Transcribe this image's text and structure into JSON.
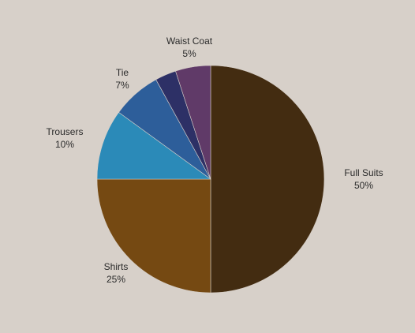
{
  "chart_data": {
    "type": "pie",
    "title": "",
    "slices": [
      {
        "label": "Full Suits",
        "value": 50,
        "value_label": "50%",
        "color": "#432c11"
      },
      {
        "label": "Shirts",
        "value": 25,
        "value_label": "25%",
        "color": "#754912"
      },
      {
        "label": "Trousers",
        "value": 10,
        "value_label": "10%",
        "color": "#2b8ab8"
      },
      {
        "label": "Tie",
        "value": 7,
        "value_label": "7%",
        "color": "#2d5e9a"
      },
      {
        "label": "",
        "value": 3,
        "value_label": "",
        "color": "#2d3066"
      },
      {
        "label": "Waist Coat",
        "value": 5,
        "value_label": "5%",
        "color": "#603a68"
      }
    ],
    "start_angle": "12 o'clock",
    "direction": "clockwise",
    "background": "#d7d0c9",
    "slice_border_color": "#d7d0c9"
  }
}
